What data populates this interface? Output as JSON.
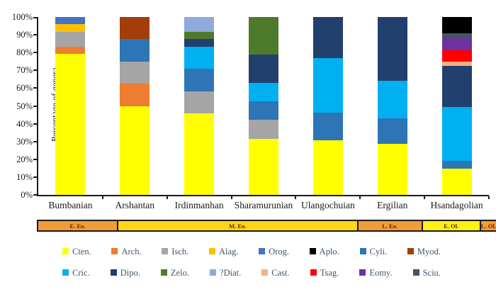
{
  "chart_data": {
    "type": "bar",
    "stacked": true,
    "ylabel": "Percentage of genera",
    "ylim": [
      0,
      100
    ],
    "grid": false,
    "yticks": [
      "0%",
      "10%",
      "20%",
      "30%",
      "40%",
      "50%",
      "60%",
      "70%",
      "80%",
      "90%",
      "100%"
    ],
    "categories": [
      "Bumbanian",
      "Arshantan",
      "Irdinmanhan",
      "Sharamurunian",
      "Ulangochuian",
      "Ergilian",
      "Hsandagolian"
    ],
    "taxa_colors": {
      "Cten.": "#FFFF00",
      "Arch.": "#ED7D31",
      "Isch.": "#A5A5A5",
      "Alag.": "#FFC000",
      "Orog.": "#4472C4",
      "Aplo.": "#000000",
      "Cyli.": "#2E75B6",
      "Myod.": "#A33E0B",
      "Cric.": "#00B0F0",
      "Dipo.": "#22406E",
      "Zelo.": "#4E7A2E",
      "?Diat.": "#8EAADB",
      "Cast.": "#F4B183",
      "Tsag.": "#FF0000",
      "Eomy.": "#7030A0",
      "Sciu.": "#44546A"
    },
    "bars": [
      {
        "category": "Bumbanian",
        "segments": [
          [
            "Cten.",
            79.2
          ],
          [
            "Arch.",
            4.2
          ],
          [
            "Isch.",
            8.3
          ],
          [
            "Alag.",
            4.2
          ],
          [
            "Orog.",
            4.1
          ]
        ]
      },
      {
        "category": "Arshantan",
        "segments": [
          [
            "Cten.",
            50.0
          ],
          [
            "Arch.",
            12.5
          ],
          [
            "Isch.",
            12.5
          ],
          [
            "Cyli.",
            12.5
          ],
          [
            "Myod.",
            12.5
          ]
        ]
      },
      {
        "category": "Irdinmanhan",
        "segments": [
          [
            "Cten.",
            45.8
          ],
          [
            "Isch.",
            12.5
          ],
          [
            "Cyli.",
            12.5
          ],
          [
            "Cric.",
            12.5
          ],
          [
            "Dipo.",
            4.2
          ],
          [
            "Zelo.",
            4.2
          ],
          [
            "?Diat.",
            8.3
          ]
        ]
      },
      {
        "category": "Sharamurunian",
        "segments": [
          [
            "Cten.",
            31.6
          ],
          [
            "Isch.",
            10.5
          ],
          [
            "Cyli.",
            10.5
          ],
          [
            "Cric.",
            10.5
          ],
          [
            "Dipo.",
            15.8
          ],
          [
            "Zelo.",
            21.1
          ]
        ]
      },
      {
        "category": "Ulangochuian",
        "segments": [
          [
            "Cten.",
            30.8
          ],
          [
            "Cyli.",
            15.4
          ],
          [
            "Cric.",
            30.7
          ],
          [
            "Dipo.",
            23.1
          ]
        ]
      },
      {
        "category": "Ergilian",
        "segments": [
          [
            "Cten.",
            28.6
          ],
          [
            "Cyli.",
            14.3
          ],
          [
            "Cric.",
            21.4
          ],
          [
            "Dipo.",
            35.7
          ]
        ]
      },
      {
        "category": "Hsandagolian",
        "segments": [
          [
            "Cten.",
            14.6
          ],
          [
            "Cyli.",
            4.6
          ],
          [
            "Cric.",
            30.4
          ],
          [
            "Dipo.",
            23.0
          ],
          [
            "Cast.",
            2.5
          ],
          [
            "Tsag.",
            6.2
          ],
          [
            "Eomy.",
            6.9
          ],
          [
            "Sciu.",
            2.6
          ],
          [
            "Aplo.",
            9.2
          ]
        ]
      }
    ]
  },
  "timeline": {
    "segments": [
      {
        "label": "E. Eo.",
        "color": "#F29B38",
        "width_pct": 17.5
      },
      {
        "label": "M. Eo.",
        "color": "#FFD616",
        "width_pct": 52.4
      },
      {
        "label": "L. Eo.",
        "color": "#F29B38",
        "width_pct": 14.1
      },
      {
        "label": "E. Ol.",
        "color": "#FFF116",
        "width_pct": 12.7
      },
      {
        "label": "L. Ol.",
        "color": "#F29B38",
        "width_pct": 3.3
      }
    ]
  },
  "legend": {
    "rows": [
      [
        "Cten.",
        "Arch.",
        "Isch.",
        "Alag.",
        "Orog.",
        "Aplo.",
        "Cyli.",
        "Myod."
      ],
      [
        "Cric.",
        "Dipo.",
        "Zelo.",
        "?Diat.",
        "Cast.",
        "Tsag.",
        "Eomy.",
        "Sciu."
      ]
    ]
  }
}
